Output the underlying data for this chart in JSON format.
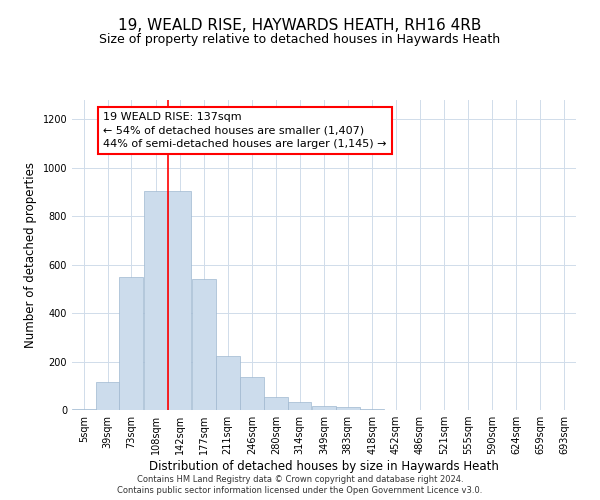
{
  "title1": "19, WEALD RISE, HAYWARDS HEATH, RH16 4RB",
  "title2": "Size of property relative to detached houses in Haywards Heath",
  "xlabel": "Distribution of detached houses by size in Haywards Heath",
  "ylabel": "Number of detached properties",
  "bar_color": "#ccdcec",
  "bar_edge_color": "#a0b8d0",
  "grid_color": "#d0dcea",
  "vline_color": "red",
  "vline_x": 142,
  "annotation_text": "19 WEALD RISE: 137sqm\n← 54% of detached houses are smaller (1,407)\n44% of semi-detached houses are larger (1,145) →",
  "annotation_box_color": "white",
  "annotation_box_edge": "red",
  "footer1": "Contains HM Land Registry data © Crown copyright and database right 2024.",
  "footer2": "Contains public sector information licensed under the Open Government Licence v3.0.",
  "categories": [
    5,
    39,
    73,
    108,
    142,
    177,
    211,
    246,
    280,
    314,
    349,
    383,
    418,
    452,
    486,
    521,
    555,
    590,
    624,
    659,
    693
  ],
  "bin_width": 34,
  "values": [
    5,
    115,
    550,
    905,
    905,
    540,
    225,
    135,
    55,
    33,
    18,
    12,
    5,
    0,
    0,
    0,
    0,
    0,
    0,
    0,
    0
  ],
  "ylim": [
    0,
    1280
  ],
  "yticks": [
    0,
    200,
    400,
    600,
    800,
    1000,
    1200
  ],
  "title1_fontsize": 11,
  "title2_fontsize": 9,
  "tick_fontsize": 7,
  "ylabel_fontsize": 8.5,
  "xlabel_fontsize": 8.5,
  "footer_fontsize": 6,
  "annotation_fontsize": 8
}
